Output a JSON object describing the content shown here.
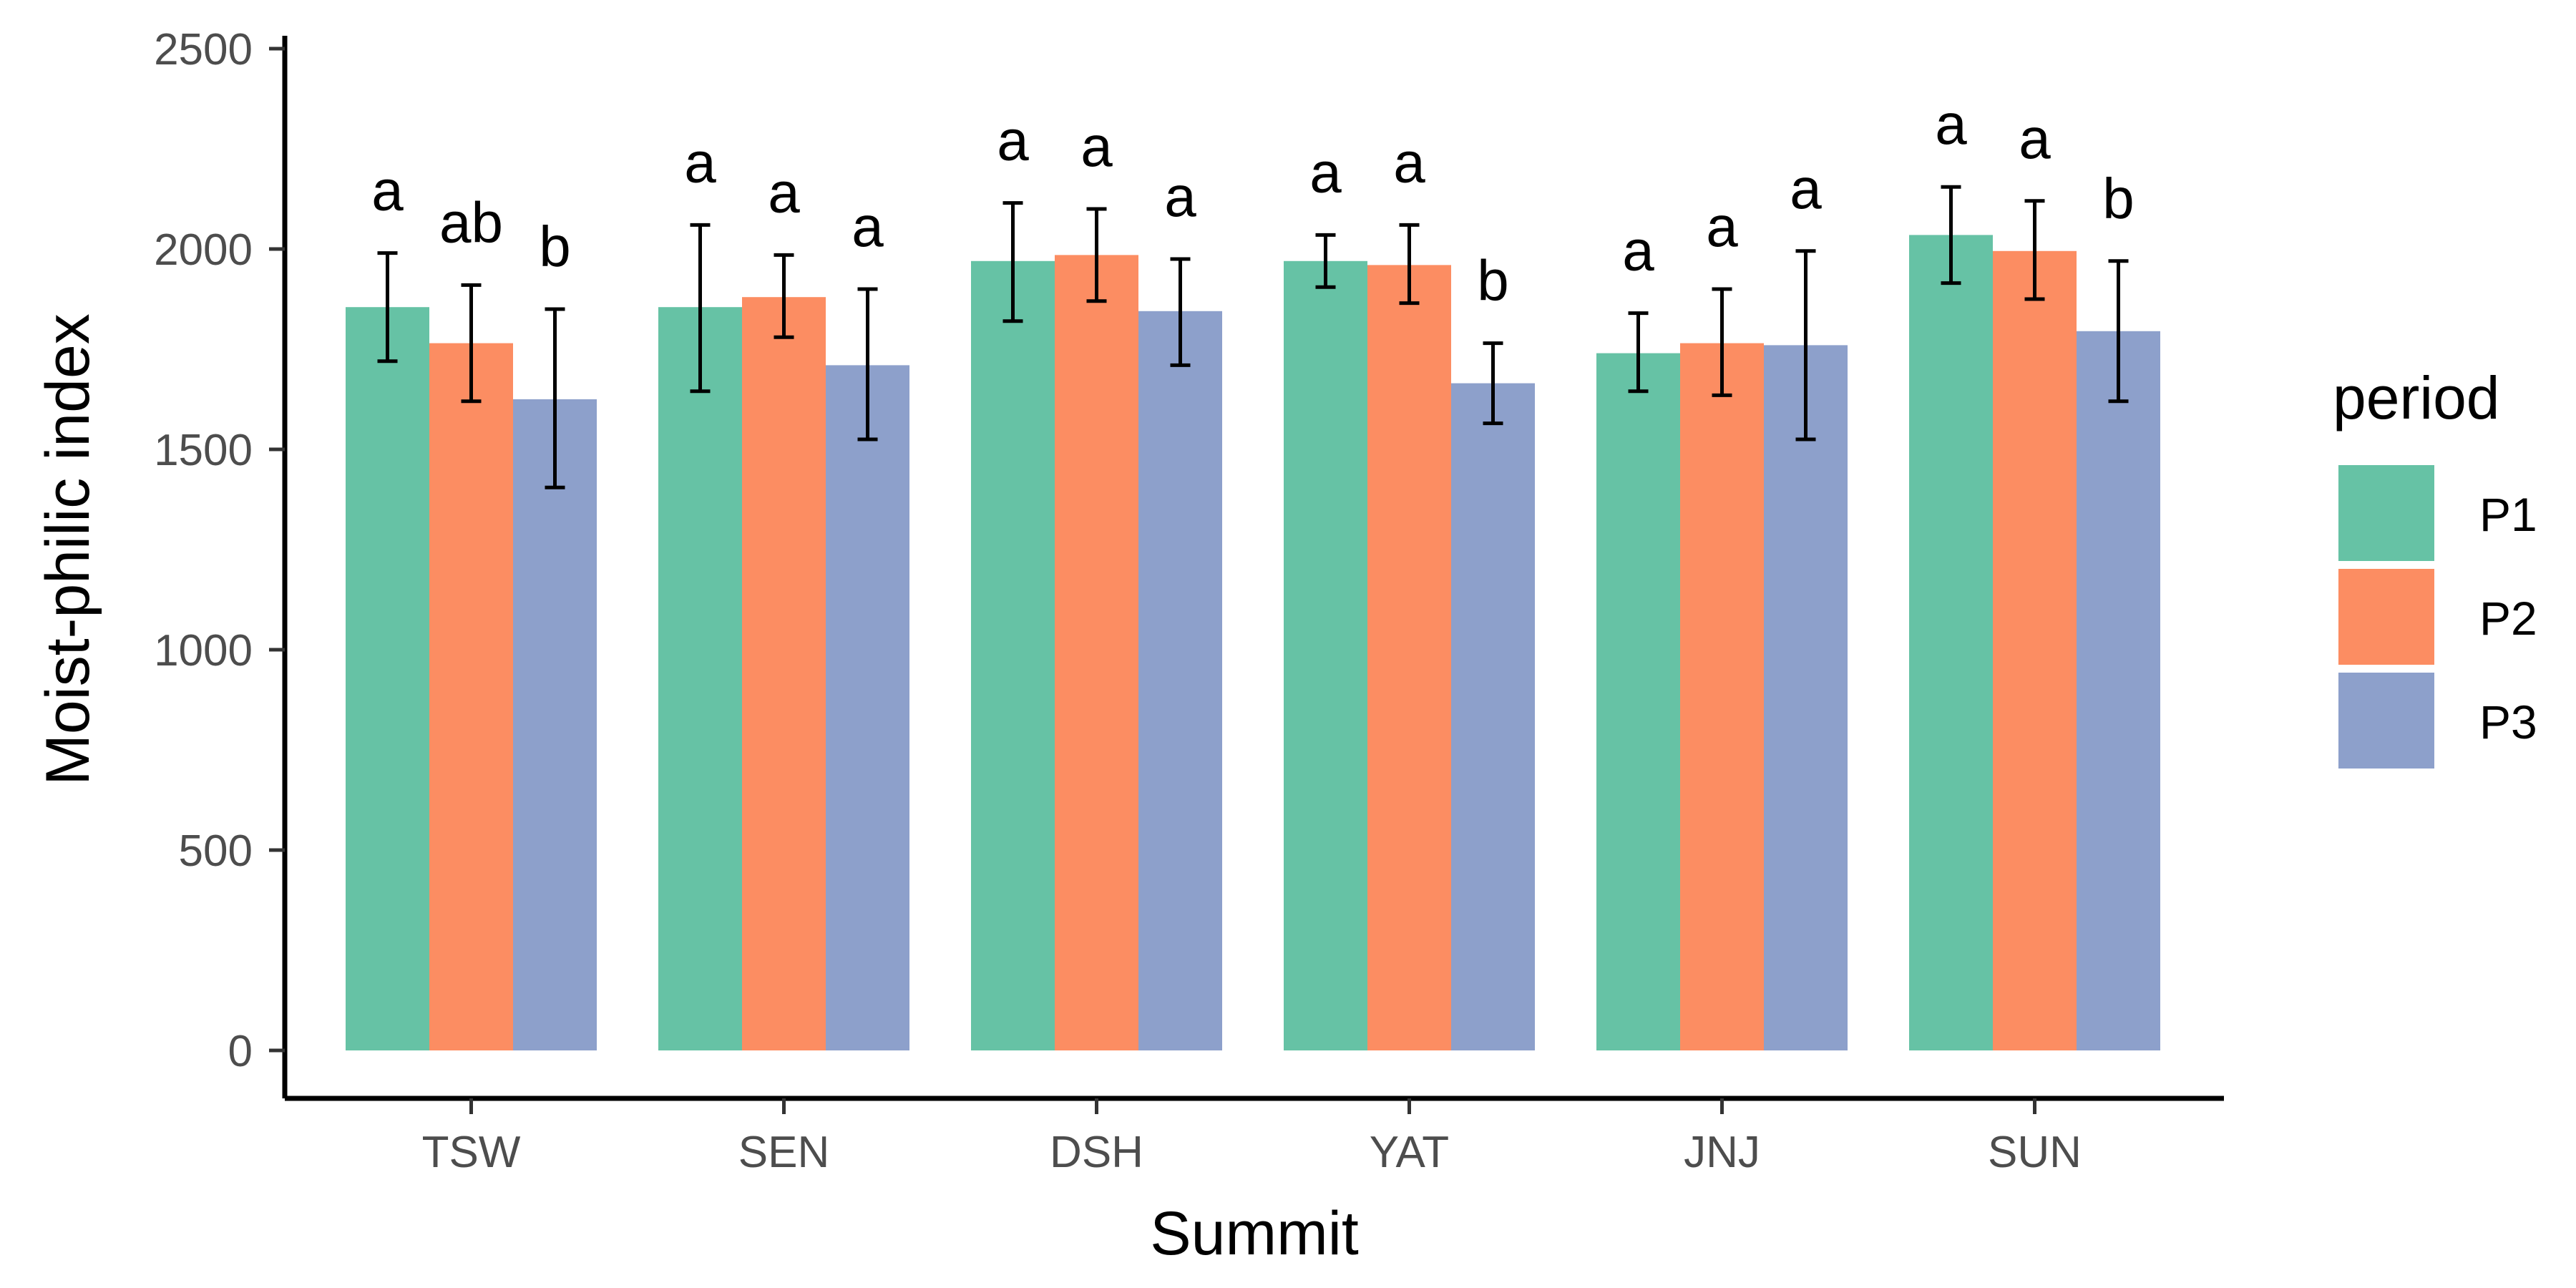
{
  "chart_data": {
    "type": "bar",
    "xlabel": "Summit",
    "ylabel": "Moist-philic index",
    "ylim": [
      0,
      2500
    ],
    "yticks": [
      0,
      500,
      1000,
      1500,
      2000,
      2500
    ],
    "categories": [
      "TSW",
      "SEN",
      "DSH",
      "YAT",
      "JNJ",
      "SUN"
    ],
    "legend": {
      "title": "period",
      "placement": "right"
    },
    "grid": false,
    "series": [
      {
        "name": "P1",
        "color": "#66c2a5",
        "values": [
          1855,
          1855,
          1970,
          1970,
          1740,
          2035
        ],
        "error": [
          [
            1720,
            1990
          ],
          [
            1645,
            2060
          ],
          [
            1820,
            2115
          ],
          [
            1905,
            2035
          ],
          [
            1645,
            1840
          ],
          [
            1915,
            2155
          ]
        ],
        "letters": [
          "a",
          "a",
          "a",
          "a",
          "a",
          "a"
        ]
      },
      {
        "name": "P2",
        "color": "#fc8d62",
        "values": [
          1765,
          1880,
          1985,
          1960,
          1765,
          1995
        ],
        "error": [
          [
            1620,
            1910
          ],
          [
            1780,
            1985
          ],
          [
            1870,
            2100
          ],
          [
            1865,
            2060
          ],
          [
            1635,
            1900
          ],
          [
            1875,
            2120
          ]
        ],
        "letters": [
          "ab",
          "a",
          "a",
          "a",
          "a",
          "a"
        ]
      },
      {
        "name": "P3",
        "color": "#8da0cb",
        "values": [
          1625,
          1710,
          1845,
          1665,
          1760,
          1795
        ],
        "error": [
          [
            1405,
            1850
          ],
          [
            1525,
            1900
          ],
          [
            1710,
            1975
          ],
          [
            1565,
            1765
          ],
          [
            1525,
            1995
          ],
          [
            1620,
            1970
          ]
        ],
        "letters": [
          "b",
          "a",
          "a",
          "b",
          "a",
          "b"
        ]
      }
    ]
  }
}
